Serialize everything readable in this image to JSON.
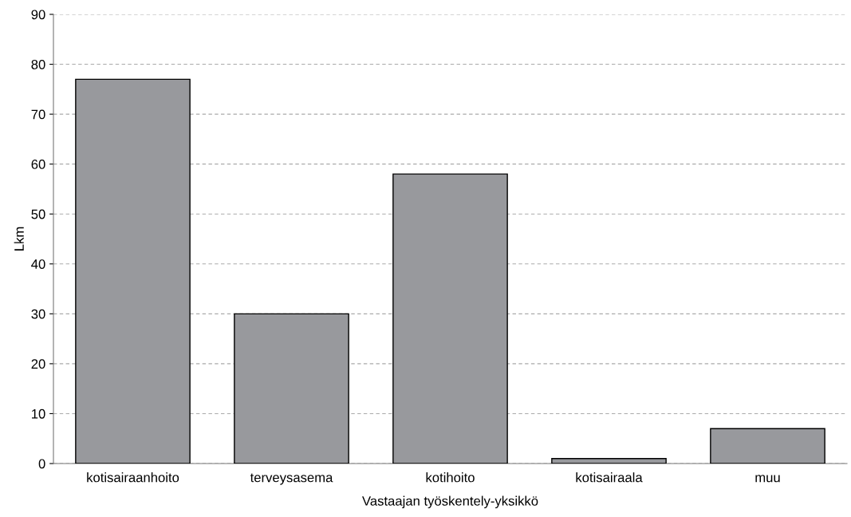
{
  "chart_data": {
    "type": "bar",
    "xlabel": "Vastaajan työskentely-yksikkö",
    "ylabel": "Lkm",
    "categories": [
      "kotisairaanhoito",
      "terveysasema",
      "kotihoito",
      "kotisairaala",
      "muu"
    ],
    "values": [
      77,
      30,
      58,
      1,
      7
    ],
    "color": "#98999d",
    "ylim": [
      0,
      90
    ],
    "yticks": [
      0,
      10,
      20,
      30,
      40,
      50,
      60,
      70,
      80,
      90
    ],
    "grid": "y",
    "line_style": "dashed"
  }
}
